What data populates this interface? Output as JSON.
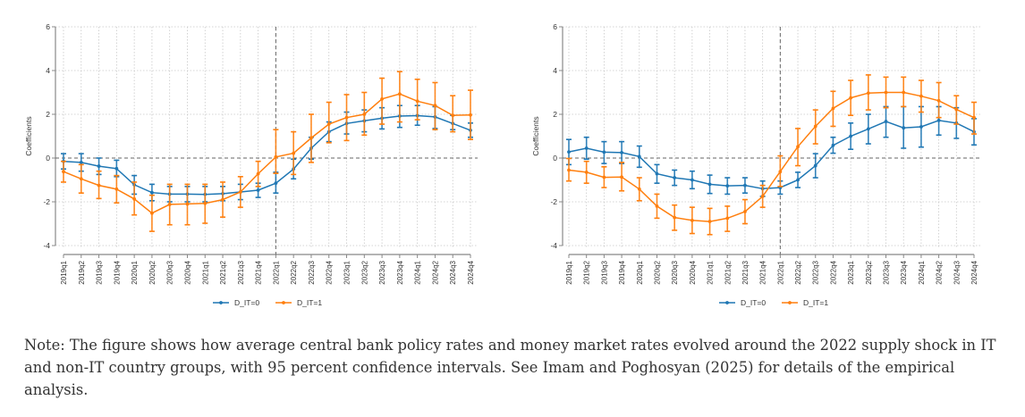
{
  "chart_data": [
    {
      "type": "line",
      "panel": "left",
      "title": "",
      "xlabel": "",
      "ylabel": "Coefficients",
      "ylim": [
        -4,
        6
      ],
      "yticks": [
        -4,
        -2,
        0,
        2,
        4,
        6
      ],
      "grid": true,
      "reference_lines": {
        "y": 0,
        "x": "2022q1"
      },
      "legend": {
        "placement": "bottom-center"
      },
      "categories": [
        "2019q1",
        "2019q2",
        "2019q3",
        "2019q4",
        "2020q1",
        "2020q2",
        "2020q3",
        "2020q4",
        "2021q1",
        "2021q2",
        "2021q3",
        "2021q4",
        "2022q1",
        "2022q2",
        "2022q3",
        "2022q4",
        "2023q1",
        "2023q2",
        "2023q3",
        "2023q4",
        "2024q1",
        "2024q2",
        "2024q3",
        "2024q4"
      ],
      "series": [
        {
          "name": "D_IT=0",
          "color": "#1f77b4",
          "values": [
            -0.15,
            -0.2,
            -0.37,
            -0.48,
            -1.22,
            -1.58,
            -1.65,
            -1.65,
            -1.66,
            -1.63,
            -1.55,
            -1.47,
            -1.15,
            -0.5,
            0.45,
            1.2,
            1.58,
            1.7,
            1.82,
            1.92,
            1.94,
            1.88,
            1.58,
            1.27
          ],
          "lower": [
            -0.5,
            -0.6,
            -0.75,
            -0.85,
            -1.65,
            -1.95,
            -2.0,
            -2.0,
            -2.0,
            -1.95,
            -1.9,
            -1.8,
            -1.6,
            -0.95,
            -0.05,
            0.75,
            1.1,
            1.2,
            1.33,
            1.4,
            1.5,
            1.35,
            1.3,
            0.95
          ],
          "upper": [
            0.2,
            0.2,
            0.0,
            -0.1,
            -0.8,
            -1.2,
            -1.3,
            -1.3,
            -1.3,
            -1.3,
            -1.2,
            -1.15,
            -0.65,
            -0.05,
            0.95,
            1.65,
            2.1,
            2.2,
            2.3,
            2.4,
            2.4,
            2.35,
            1.95,
            1.6
          ]
        },
        {
          "name": "D_IT=1",
          "color": "#ff7f0e",
          "values": [
            -0.62,
            -0.95,
            -1.25,
            -1.42,
            -1.87,
            -2.52,
            -2.12,
            -2.1,
            -2.07,
            -1.9,
            -1.55,
            -0.72,
            0.05,
            0.22,
            0.92,
            1.55,
            1.85,
            2.0,
            2.7,
            2.93,
            2.6,
            2.4,
            1.95,
            1.97
          ],
          "lower": [
            -1.1,
            -1.6,
            -1.85,
            -2.05,
            -2.6,
            -3.35,
            -3.05,
            -3.05,
            -2.98,
            -2.7,
            -2.25,
            -1.3,
            -0.7,
            -0.75,
            -0.2,
            0.7,
            0.8,
            1.05,
            1.55,
            1.65,
            1.75,
            1.3,
            1.2,
            0.85
          ],
          "upper": [
            -0.15,
            -0.3,
            -0.6,
            -0.8,
            -1.1,
            -1.7,
            -1.2,
            -1.2,
            -1.2,
            -1.1,
            -0.85,
            -0.15,
            1.3,
            1.2,
            2.0,
            2.55,
            2.9,
            3.0,
            3.65,
            3.95,
            3.6,
            3.45,
            2.85,
            3.1
          ]
        }
      ]
    },
    {
      "type": "line",
      "panel": "right",
      "title": "",
      "xlabel": "",
      "ylabel": "Coefficients",
      "ylim": [
        -4,
        6
      ],
      "yticks": [
        -4,
        -2,
        0,
        2,
        4,
        6
      ],
      "grid": true,
      "reference_lines": {
        "y": 0,
        "x": "2022q1"
      },
      "legend": {
        "placement": "bottom-center"
      },
      "categories": [
        "2019q1",
        "2019q2",
        "2019q3",
        "2019q4",
        "2020q1",
        "2020q2",
        "2020q3",
        "2020q4",
        "2021q1",
        "2021q2",
        "2021q3",
        "2021q4",
        "2022q1",
        "2022q2",
        "2022q3",
        "2022q4",
        "2023q1",
        "2023q2",
        "2023q3",
        "2023q4",
        "2024q1",
        "2024q2",
        "2024q3",
        "2024q4"
      ],
      "series": [
        {
          "name": "D_IT=0",
          "color": "#1f77b4",
          "values": [
            0.28,
            0.45,
            0.27,
            0.25,
            0.07,
            -0.72,
            -0.9,
            -1.0,
            -1.2,
            -1.27,
            -1.25,
            -1.4,
            -1.35,
            -1.0,
            -0.35,
            0.58,
            1.0,
            1.33,
            1.67,
            1.38,
            1.43,
            1.72,
            1.6,
            1.2
          ],
          "lower": [
            -0.3,
            -0.05,
            -0.25,
            -0.25,
            -0.42,
            -1.15,
            -1.25,
            -1.4,
            -1.62,
            -1.65,
            -1.6,
            -1.75,
            -1.65,
            -1.35,
            -0.9,
            0.22,
            0.4,
            0.65,
            0.95,
            0.45,
            0.5,
            1.05,
            0.9,
            0.6
          ],
          "upper": [
            0.85,
            0.95,
            0.75,
            0.75,
            0.55,
            -0.3,
            -0.55,
            -0.6,
            -0.78,
            -0.9,
            -0.9,
            -1.05,
            -1.05,
            -0.65,
            0.2,
            0.95,
            1.6,
            2.0,
            2.35,
            2.35,
            2.35,
            2.35,
            2.3,
            1.8
          ]
        },
        {
          "name": "D_IT=1",
          "color": "#ff7f0e",
          "values": [
            -0.55,
            -0.65,
            -0.88,
            -0.87,
            -1.42,
            -2.2,
            -2.72,
            -2.85,
            -2.9,
            -2.75,
            -2.45,
            -1.75,
            -0.62,
            0.52,
            1.45,
            2.27,
            2.75,
            2.97,
            3.0,
            3.0,
            2.83,
            2.62,
            2.22,
            1.85
          ],
          "lower": [
            -1.05,
            -1.15,
            -1.35,
            -1.5,
            -1.95,
            -2.75,
            -3.3,
            -3.45,
            -3.5,
            -3.35,
            -3.0,
            -2.25,
            -1.3,
            -0.35,
            0.65,
            1.45,
            1.95,
            2.2,
            2.3,
            2.35,
            2.1,
            1.85,
            1.55,
            1.1
          ],
          "upper": [
            -0.02,
            -0.15,
            -0.4,
            -0.2,
            -0.9,
            -1.65,
            -2.15,
            -2.25,
            -2.3,
            -2.2,
            -1.9,
            -1.25,
            0.1,
            1.35,
            2.2,
            3.05,
            3.55,
            3.8,
            3.7,
            3.7,
            3.55,
            3.45,
            2.85,
            2.55
          ]
        }
      ]
    }
  ],
  "note": "Note: The figure shows how average central bank policy rates and money market rates evolved around the 2022 supply shock in IT and non-IT country groups, with 95 percent confidence intervals. See Imam and Poghosyan (2025) for details of the empirical analysis."
}
